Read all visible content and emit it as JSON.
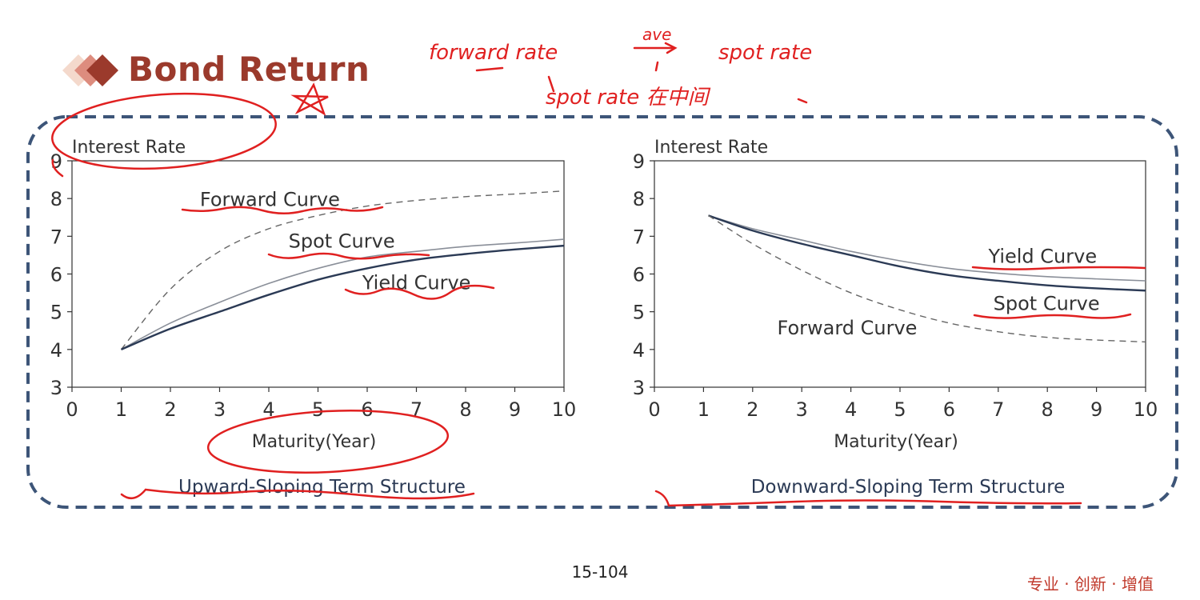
{
  "slide": {
    "title": "Bond Return",
    "page_number": "15-104",
    "footer_slogan": "专业 · 创新 · 增值",
    "accent_color": "#9b3a2c",
    "frame_color": "#3d5578",
    "ink_color": "#e02020"
  },
  "annotations": {
    "line1": "forward rate",
    "arrow_label": "ave",
    "line1_end": "spot rate",
    "line2": "spot rate 在中间"
  },
  "chart_data": [
    {
      "type": "line",
      "ylabel": "Interest Rate",
      "xlabel": "Maturity(Year)",
      "caption": "Upward-Sloping Term Structure",
      "xlim": [
        0,
        10
      ],
      "ylim": [
        3,
        9
      ],
      "xticks": [
        "0",
        "1",
        "2",
        "3",
        "4",
        "5",
        "6",
        "7",
        "8",
        "9",
        "10"
      ],
      "yticks": [
        "3",
        "4",
        "5",
        "6",
        "7",
        "8",
        "9"
      ],
      "x": [
        1,
        2,
        3,
        4,
        5,
        6,
        7,
        8,
        9,
        10
      ],
      "series": [
        {
          "name": "Forward Curve",
          "style": "dashed",
          "values": [
            4.0,
            5.6,
            6.6,
            7.2,
            7.55,
            7.8,
            7.95,
            8.05,
            8.12,
            8.2
          ]
        },
        {
          "name": "Spot Curve",
          "style": "solid-thin",
          "values": [
            4.0,
            4.7,
            5.25,
            5.75,
            6.15,
            6.45,
            6.6,
            6.73,
            6.82,
            6.92
          ]
        },
        {
          "name": "Yield Curve",
          "style": "solid-thick",
          "values": [
            4.0,
            4.55,
            5.0,
            5.45,
            5.85,
            6.15,
            6.38,
            6.53,
            6.65,
            6.75
          ]
        }
      ],
      "label_positions": [
        "Forward Curve@2.6,7.8",
        "Spot Curve@4.4,6.7",
        "Yield Curve@5.9,5.6"
      ]
    },
    {
      "type": "line",
      "ylabel": "Interest Rate",
      "xlabel": "Maturity(Year)",
      "caption": "Downward-Sloping Term Structure",
      "xlim": [
        0,
        10
      ],
      "ylim": [
        3,
        9
      ],
      "xticks": [
        "0",
        "1",
        "2",
        "3",
        "4",
        "5",
        "6",
        "7",
        "8",
        "9",
        "10"
      ],
      "yticks": [
        "3",
        "4",
        "5",
        "6",
        "7",
        "8",
        "9"
      ],
      "x": [
        1.1,
        2,
        3,
        4,
        5,
        6,
        7,
        8,
        9,
        10
      ],
      "series": [
        {
          "name": "Yield Curve",
          "style": "solid-thin",
          "values": [
            7.55,
            7.2,
            6.9,
            6.6,
            6.35,
            6.15,
            6.02,
            5.93,
            5.87,
            5.82
          ]
        },
        {
          "name": "Spot Curve",
          "style": "solid-thick",
          "values": [
            7.55,
            7.15,
            6.8,
            6.5,
            6.2,
            5.97,
            5.82,
            5.7,
            5.62,
            5.56
          ]
        },
        {
          "name": "Forward Curve",
          "style": "dashed",
          "values": [
            7.55,
            6.8,
            6.1,
            5.5,
            5.05,
            4.7,
            4.47,
            4.32,
            4.25,
            4.2
          ]
        }
      ],
      "label_positions": [
        "Yield Curve@6.8,6.3",
        "Spot Curve@6.9,5.05",
        "Forward Curve@2.5,4.4"
      ]
    }
  ]
}
